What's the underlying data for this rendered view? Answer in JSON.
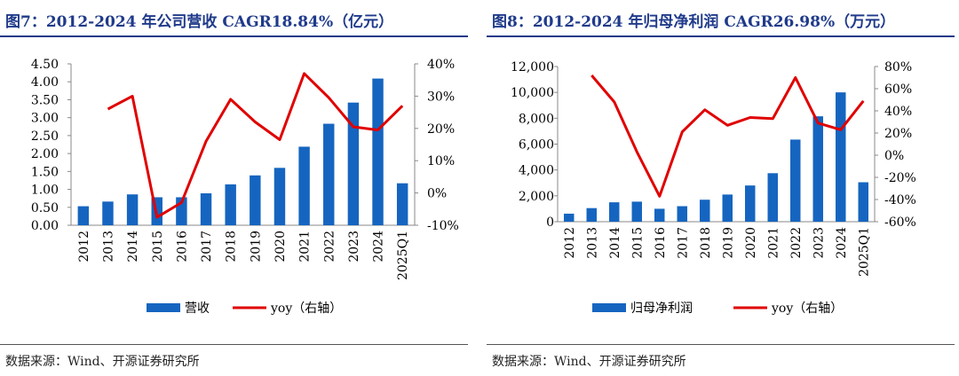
{
  "panels": [
    {
      "figure_title": "图7：2012-2024 年公司营收 CAGR18.84%（亿元）",
      "source": "数据来源：Wind、开源证券研究所",
      "bar_color": "#1565c0",
      "line_color": "#e00000"
    },
    {
      "figure_title": "图8：2012-2024 年归母净利润 CAGR26.98%（万元）",
      "source": "数据来源：Wind、开源证券研究所",
      "bar_color": "#1565c0",
      "line_color": "#e00000"
    }
  ],
  "chart_data": [
    {
      "type": "bar",
      "title": "图7：2012-2024 年公司营收 CAGR18.84%（亿元）",
      "categories": [
        "2012",
        "2013",
        "2014",
        "2015",
        "2016",
        "2017",
        "2018",
        "2019",
        "2020",
        "2021",
        "2022",
        "2023",
        "2024",
        "2025Q1"
      ],
      "series": [
        {
          "name": "营收",
          "type": "bar",
          "axis": "left",
          "values": [
            0.53,
            0.66,
            0.86,
            0.78,
            0.78,
            0.89,
            1.14,
            1.39,
            1.6,
            2.19,
            2.83,
            3.42,
            4.09,
            1.17
          ]
        },
        {
          "name": "yoy（右轴）",
          "type": "line",
          "axis": "right",
          "values": [
            null,
            26,
            30,
            -7.5,
            -3,
            16,
            29,
            22,
            16.5,
            37,
            29.5,
            20.5,
            19.5,
            27
          ]
        }
      ],
      "y_left": {
        "min": 0,
        "max": 4.5,
        "ticks": [
          "0.00",
          "0.50",
          "1.00",
          "1.50",
          "2.00",
          "2.50",
          "3.00",
          "3.50",
          "4.00",
          "4.50"
        ]
      },
      "y_right": {
        "min": -10,
        "max": 40,
        "ticks": [
          "-10%",
          "0%",
          "10%",
          "20%",
          "30%",
          "40%"
        ]
      },
      "legend_position": "bottom",
      "grid": false
    },
    {
      "type": "bar",
      "title": "图8：2012-2024 年归母净利润 CAGR26.98%（万元）",
      "categories": [
        "2012",
        "2013",
        "2014",
        "2015",
        "2016",
        "2017",
        "2018",
        "2019",
        "2020",
        "2021",
        "2022",
        "2023",
        "2024",
        "2025Q1"
      ],
      "series": [
        {
          "name": "归母净利润",
          "type": "bar",
          "axis": "left",
          "values": [
            620,
            1050,
            1500,
            1550,
            1000,
            1200,
            1700,
            2100,
            2800,
            3750,
            6350,
            8150,
            10000,
            3050
          ]
        },
        {
          "name": "yoy（右轴）",
          "type": "line",
          "axis": "right",
          "values": [
            null,
            72,
            48,
            3,
            -37,
            21,
            41,
            27,
            34,
            33,
            70,
            29,
            23,
            49
          ]
        }
      ],
      "y_left": {
        "min": 0,
        "max": 12000,
        "ticks": [
          "0",
          "2,000",
          "4,000",
          "6,000",
          "8,000",
          "10,000",
          "12,000"
        ]
      },
      "y_right": {
        "min": -60,
        "max": 80,
        "ticks": [
          "-60%",
          "-40%",
          "-20%",
          "0%",
          "20%",
          "40%",
          "60%",
          "80%"
        ]
      },
      "legend_position": "bottom",
      "grid": false
    }
  ]
}
